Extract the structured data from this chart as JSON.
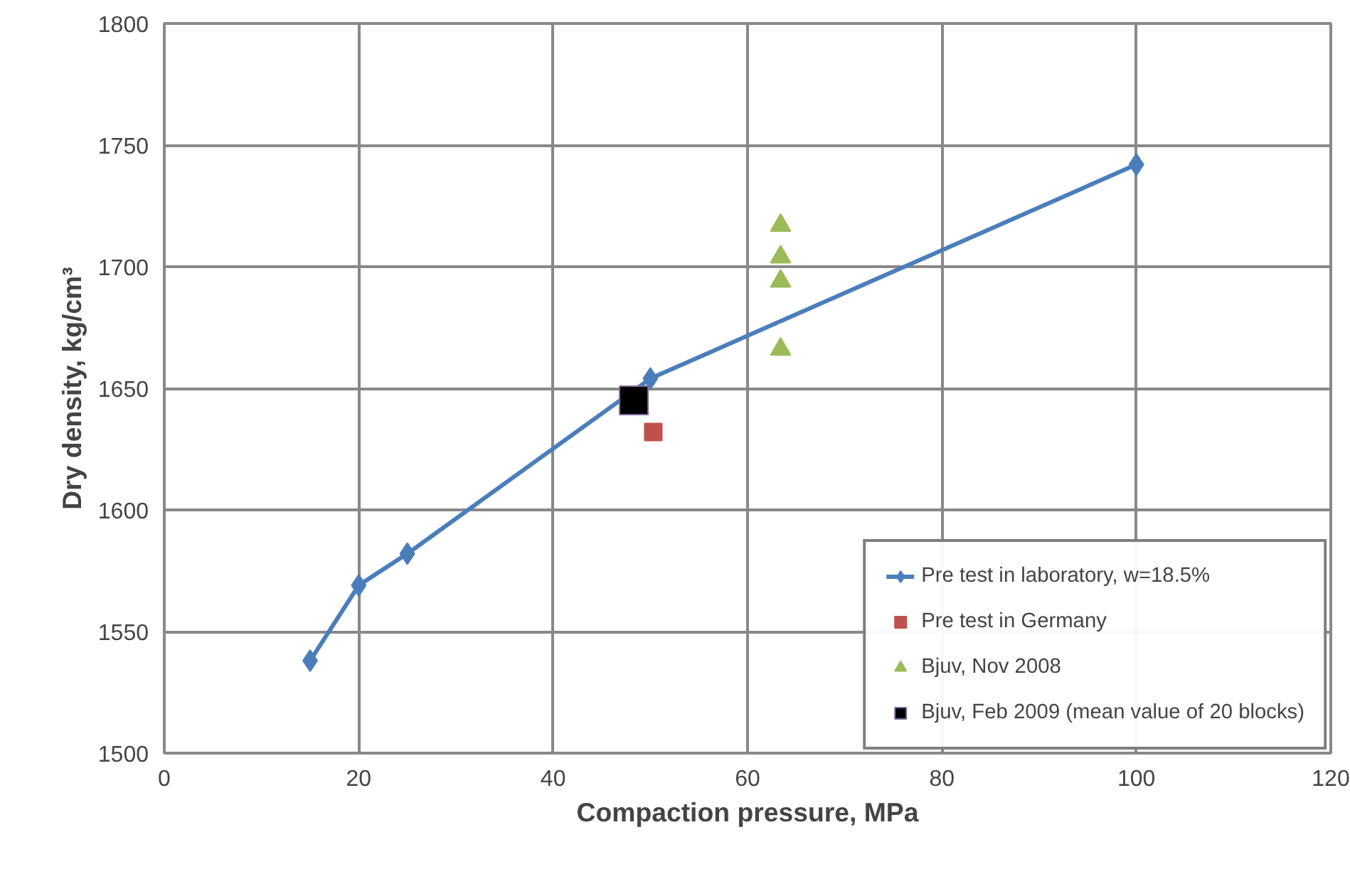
{
  "chart_data": {
    "type": "scatter",
    "xlabel": "Compaction pressure, MPa",
    "ylabel": "Dry density, kg/cm³",
    "xlim": [
      0,
      120
    ],
    "xticks": [
      0,
      20,
      40,
      60,
      80,
      100,
      120
    ],
    "ylim": [
      1500,
      1800
    ],
    "yticks": [
      1500,
      1550,
      1600,
      1650,
      1700,
      1750,
      1800
    ],
    "grid": true,
    "legend": "bottom right",
    "series": [
      {
        "name": "Pre test in laboratory, w=18.5%",
        "type": "line",
        "marker": "diamond",
        "color": "#4a7ebb",
        "x": [
          15,
          20,
          25,
          50,
          100
        ],
        "values": [
          1538,
          1569,
          1582,
          1654,
          1742
        ]
      },
      {
        "name": "Pre test in Germany",
        "marker": "square",
        "color": "#c0504d",
        "x": [
          50.3
        ],
        "values": [
          1632
        ]
      },
      {
        "name": "Bjuv, Nov 2008",
        "marker": "triangle",
        "color": "#9bbb59",
        "x": [
          63.4,
          63.4,
          63.4,
          63.4
        ],
        "values": [
          1717,
          1704,
          1694,
          1666
        ]
      },
      {
        "name": "Bjuv, Feb 2009 (mean value of 20 blocks)",
        "marker": "square",
        "color": "#000000",
        "x": [
          48.3
        ],
        "values": [
          1645
        ]
      }
    ]
  }
}
